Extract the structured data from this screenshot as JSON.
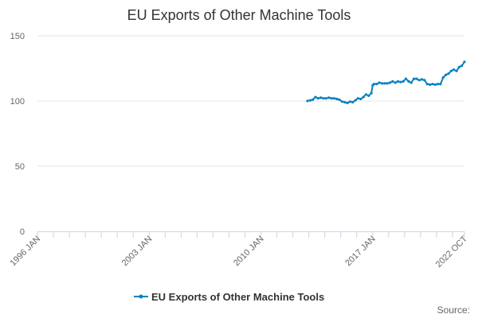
{
  "chart_data": {
    "type": "line",
    "title": "EU Exports of Other Machine Tools",
    "xlabel": "",
    "ylabel": "",
    "credit": "Source:",
    "color": "#0a81bf",
    "grid": true,
    "legend_position": "bottom-center",
    "x_range": [
      "1996-01",
      "2022-10"
    ],
    "ylim": [
      0,
      150
    ],
    "y_ticks": [
      0,
      50,
      100,
      150
    ],
    "x_tick_labels": [
      "1996 JAN",
      "2003 JAN",
      "2010 JAN",
      "2017 JAN",
      "2022 OCT"
    ],
    "x_tick_dates": [
      "1996-01",
      "2003-01",
      "2010-01",
      "2017-01",
      "2022-10"
    ],
    "series": [
      {
        "name": "EU Exports of Other Machine Tools",
        "x": [
          "2012-12",
          "2013-02",
          "2013-04",
          "2013-06",
          "2013-08",
          "2013-10",
          "2013-12",
          "2014-02",
          "2014-04",
          "2014-06",
          "2014-08",
          "2014-10",
          "2014-12",
          "2015-02",
          "2015-04",
          "2015-06",
          "2015-08",
          "2015-10",
          "2015-12",
          "2016-02",
          "2016-04",
          "2016-06",
          "2016-08",
          "2016-10",
          "2016-12",
          "2017-01",
          "2017-02",
          "2017-04",
          "2017-06",
          "2017-08",
          "2017-10",
          "2017-12",
          "2018-02",
          "2018-04",
          "2018-06",
          "2018-08",
          "2018-10",
          "2018-12",
          "2019-02",
          "2019-04",
          "2019-06",
          "2019-08",
          "2019-10",
          "2019-12",
          "2020-02",
          "2020-04",
          "2020-06",
          "2020-08",
          "2020-10",
          "2020-12",
          "2021-02",
          "2021-04",
          "2021-06",
          "2021-08",
          "2021-10",
          "2021-12",
          "2022-02",
          "2022-04",
          "2022-06",
          "2022-08",
          "2022-10"
        ],
        "values": [
          100,
          100.5,
          101,
          103,
          102,
          102.5,
          102,
          102,
          102.5,
          102,
          102,
          101.5,
          101,
          99.5,
          99,
          98.5,
          99.5,
          99,
          100.5,
          102,
          101.5,
          103,
          105,
          104,
          106,
          112,
          113,
          113,
          114,
          113.5,
          113.5,
          113.5,
          114,
          115,
          114,
          115,
          114.5,
          115,
          117,
          115,
          114,
          117,
          117,
          116,
          116.5,
          116,
          113,
          112.5,
          113,
          112.5,
          113,
          113,
          118,
          120,
          121,
          123,
          124,
          123,
          126,
          127,
          130
        ]
      }
    ]
  }
}
